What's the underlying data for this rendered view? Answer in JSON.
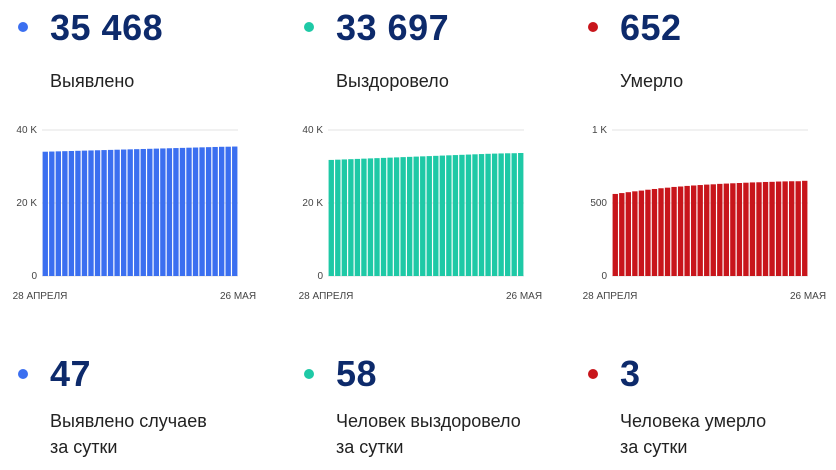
{
  "panels": [
    {
      "total": "35 468",
      "total_label": "Выявлено",
      "daily": "47",
      "daily_label_line1": "Выявлено случаев",
      "daily_label_line2": "за сутки",
      "dot_color": "#3b6ff0"
    },
    {
      "total": "33 697",
      "total_label": "Выздоровело",
      "daily": "58",
      "daily_label_line1": "Человек выздоровело",
      "daily_label_line2": "за сутки",
      "dot_color": "#1ec9a6"
    },
    {
      "total": "652",
      "total_label": "Умерло",
      "daily": "3",
      "daily_label_line1": "Человека умерло",
      "daily_label_line2": "за сутки",
      "dot_color": "#c8151b"
    }
  ],
  "chart_data": [
    {
      "type": "bar",
      "color": "#3b6ff0",
      "x_start_label": "28 АПРЕЛЯ",
      "x_end_label": "26 МАЯ",
      "yticks": [
        0,
        20000,
        40000
      ],
      "ytick_labels": [
        "0",
        "20 K",
        "40 K"
      ],
      "ylim": [
        0,
        40000
      ],
      "grid": true,
      "values": [
        34050,
        34100,
        34150,
        34200,
        34250,
        34300,
        34350,
        34400,
        34450,
        34500,
        34550,
        34600,
        34650,
        34700,
        34750,
        34800,
        34850,
        34900,
        34950,
        35000,
        35050,
        35100,
        35150,
        35200,
        35250,
        35300,
        35350,
        35400,
        35421,
        35468
      ]
    },
    {
      "type": "bar",
      "color": "#1ec9a6",
      "x_start_label": "28 АПРЕЛЯ",
      "x_end_label": "26 МАЯ",
      "yticks": [
        0,
        20000,
        40000
      ],
      "ytick_labels": [
        "0",
        "20 K",
        "40 K"
      ],
      "ylim": [
        0,
        40000
      ],
      "grid": true,
      "values": [
        31800,
        31870,
        31940,
        32010,
        32080,
        32150,
        32220,
        32290,
        32360,
        32430,
        32500,
        32570,
        32640,
        32710,
        32780,
        32850,
        32920,
        32990,
        33060,
        33130,
        33200,
        33270,
        33340,
        33410,
        33480,
        33530,
        33580,
        33620,
        33639,
        33697
      ]
    },
    {
      "type": "bar",
      "color": "#c8151b",
      "x_start_label": "28 АПРЕЛЯ",
      "x_end_label": "26 МАЯ",
      "yticks": [
        0,
        500,
        1000
      ],
      "ytick_labels": [
        "0",
        "500",
        "1 K"
      ],
      "ylim": [
        0,
        1000
      ],
      "grid": true,
      "values": [
        562,
        568,
        574,
        580,
        585,
        591,
        596,
        601,
        605,
        610,
        613,
        617,
        620,
        623,
        626,
        628,
        631,
        633,
        635,
        637,
        639,
        641,
        642,
        644,
        645,
        647,
        648,
        649,
        649,
        652
      ]
    }
  ]
}
